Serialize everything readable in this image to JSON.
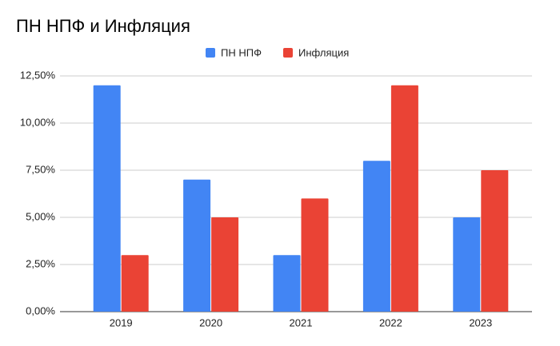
{
  "chart_data": {
    "type": "bar",
    "title": "ПН НПФ и Инфляция",
    "categories": [
      "2019",
      "2020",
      "2021",
      "2022",
      "2023"
    ],
    "series": [
      {
        "name": "ПН НПФ",
        "color": "#4285f4",
        "values": [
          12,
          7,
          3,
          8,
          5
        ]
      },
      {
        "name": "Инфляция",
        "color": "#ea4335",
        "values": [
          3,
          5,
          6,
          12,
          7.5
        ]
      }
    ],
    "ylim": [
      0,
      12.5
    ],
    "yticks": [
      {
        "value": 0,
        "label": "0,00%"
      },
      {
        "value": 2.5,
        "label": "2,50%"
      },
      {
        "value": 5,
        "label": "5,00%"
      },
      {
        "value": 7.5,
        "label": "7,50%"
      },
      {
        "value": 10,
        "label": "10,00%"
      },
      {
        "value": 12.5,
        "label": "12,50%"
      }
    ],
    "grid": true,
    "legend": "top"
  }
}
